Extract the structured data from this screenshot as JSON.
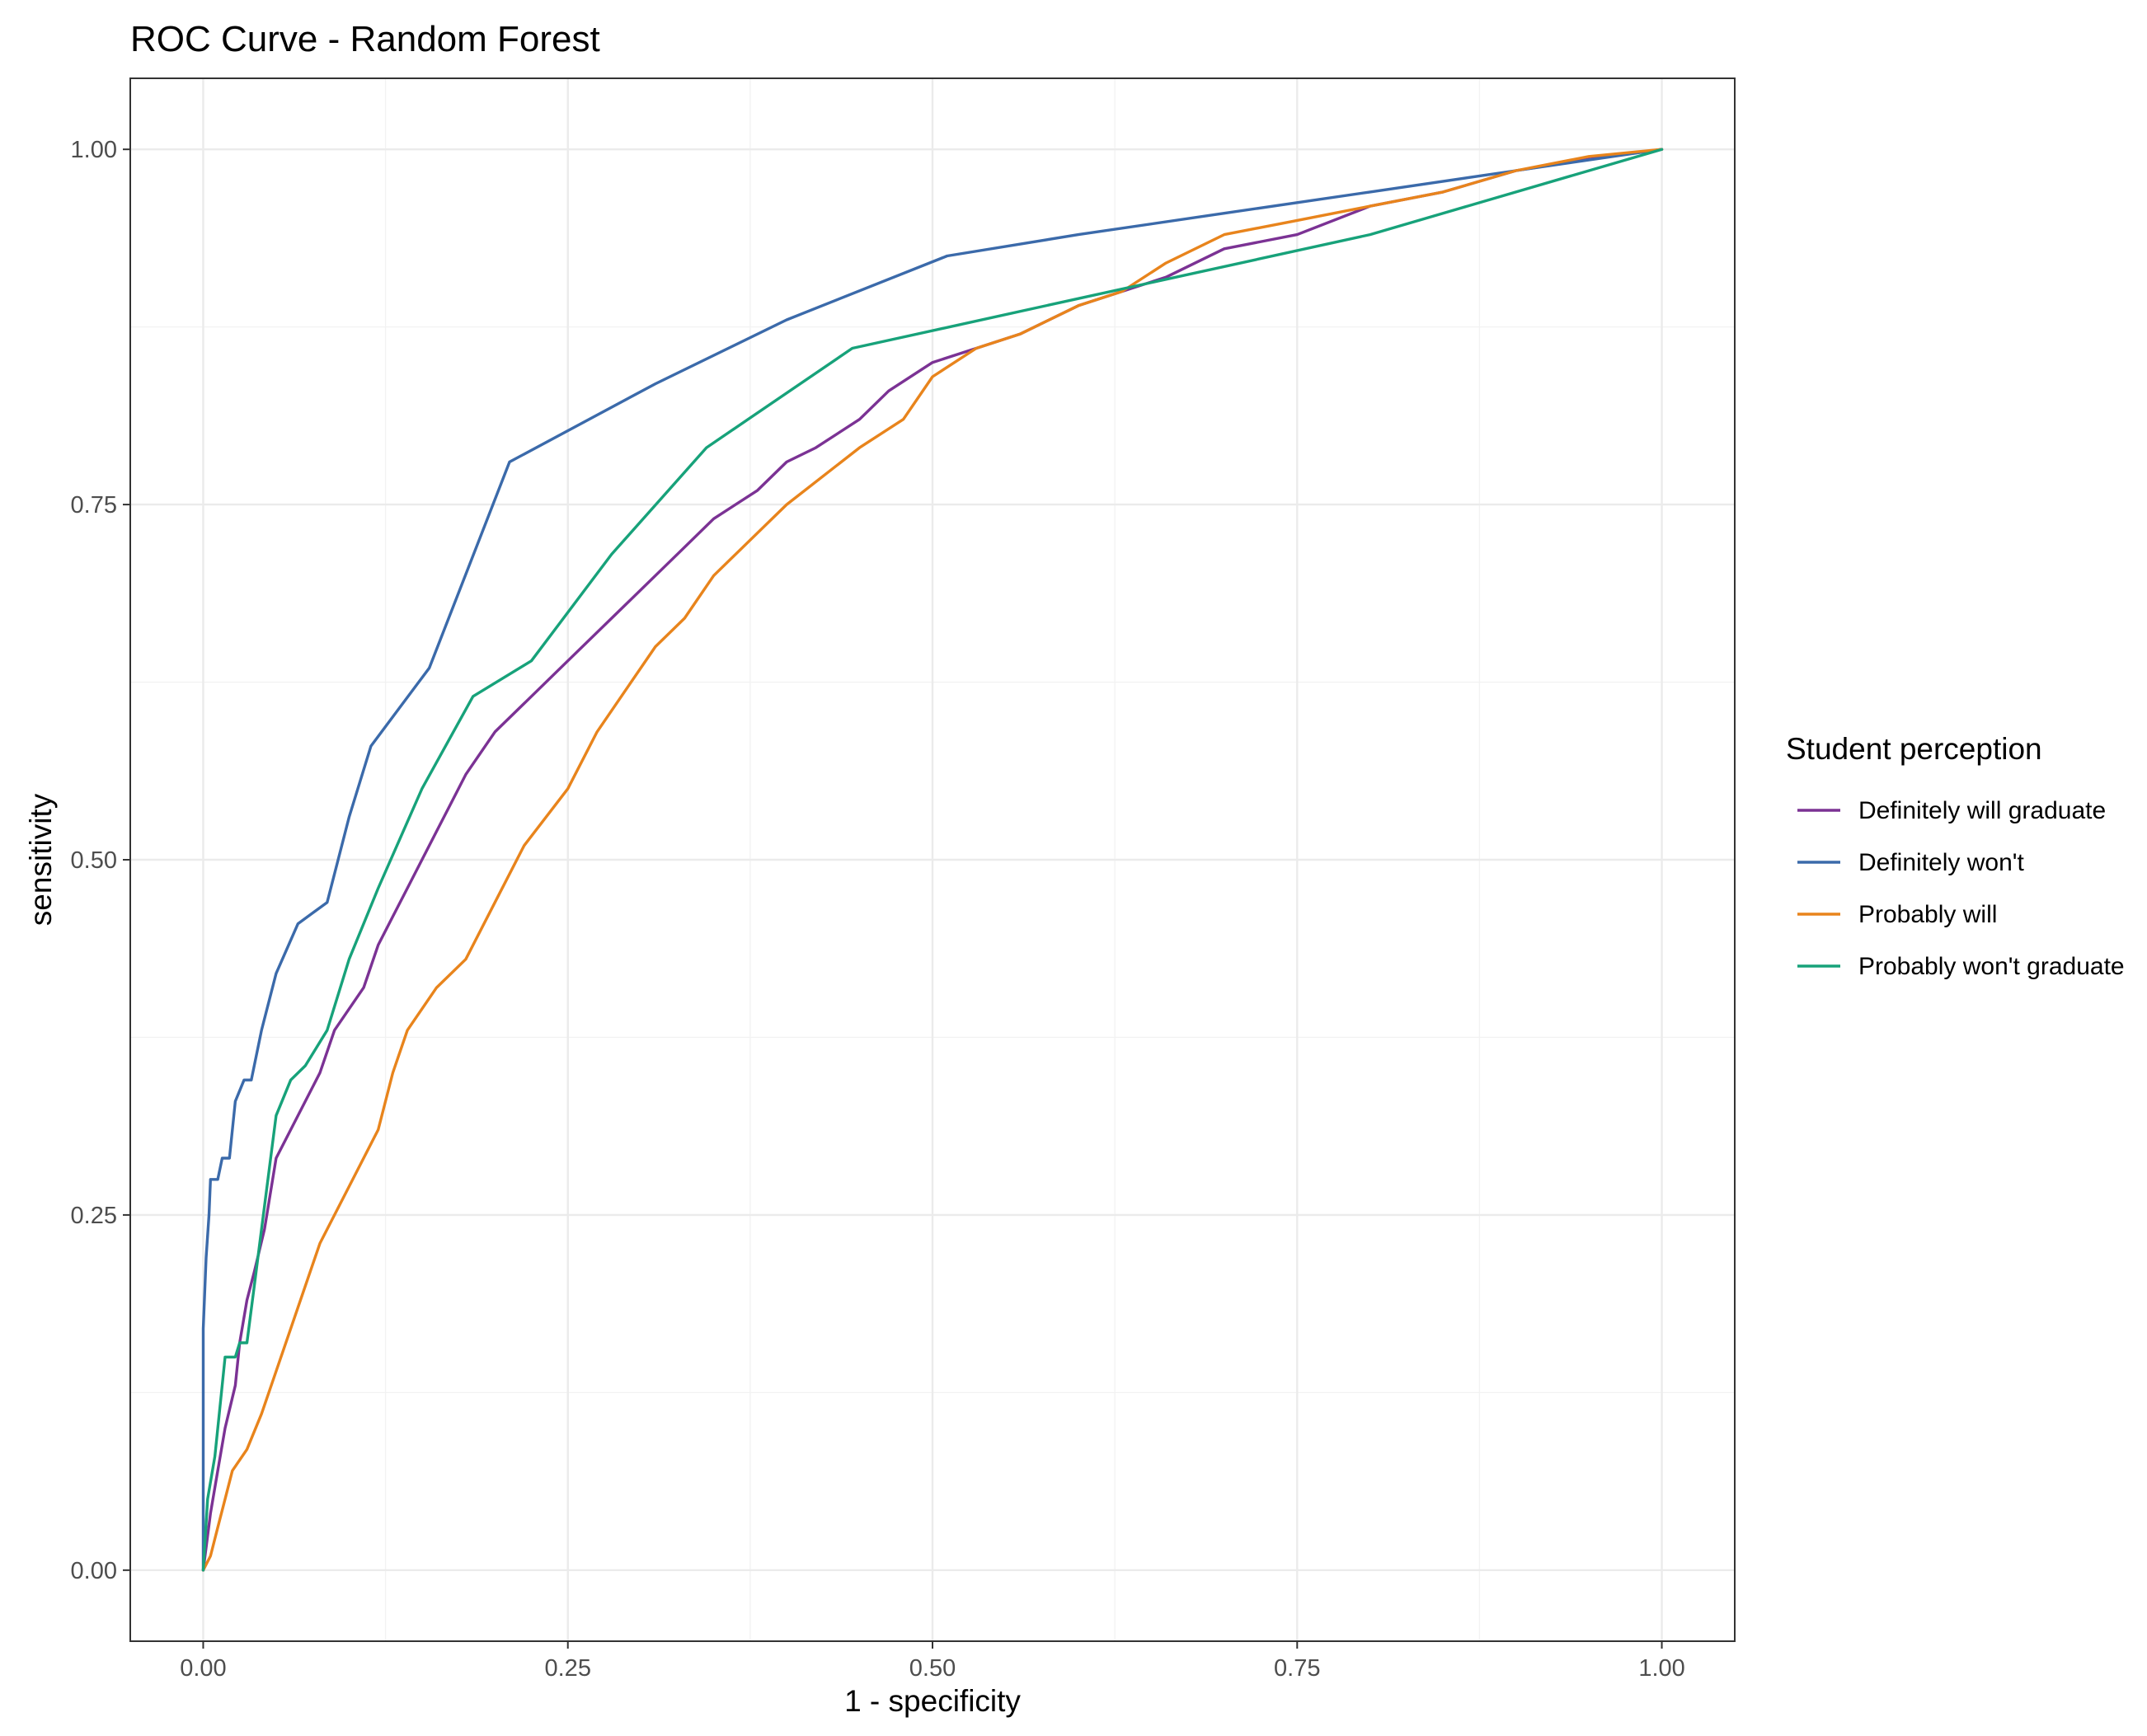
{
  "chart_data": {
    "type": "line",
    "title": "ROC Curve - Random Forest",
    "xlabel": "1 - specificity",
    "ylabel": "sensitivity",
    "xlim": [
      -0.05,
      1.05
    ],
    "ylim": [
      -0.05,
      1.05
    ],
    "x_ticks": [
      "0.00",
      "0.25",
      "0.50",
      "0.75",
      "1.00"
    ],
    "y_ticks": [
      "0.00",
      "0.25",
      "0.50",
      "0.75",
      "1.00"
    ],
    "grid": true,
    "legend_title": "Student perception",
    "legend_position": "right",
    "series": [
      {
        "name": "Definitely will graduate",
        "color": "#7b3294",
        "points": [
          [
            0,
            0
          ],
          [
            0.005,
            0.04
          ],
          [
            0.01,
            0.07
          ],
          [
            0.015,
            0.1
          ],
          [
            0.022,
            0.13
          ],
          [
            0.025,
            0.16
          ],
          [
            0.03,
            0.19
          ],
          [
            0.035,
            0.21
          ],
          [
            0.042,
            0.24
          ],
          [
            0.05,
            0.29
          ],
          [
            0.06,
            0.31
          ],
          [
            0.07,
            0.33
          ],
          [
            0.08,
            0.35
          ],
          [
            0.09,
            0.38
          ],
          [
            0.11,
            0.41
          ],
          [
            0.12,
            0.44
          ],
          [
            0.13,
            0.46
          ],
          [
            0.14,
            0.48
          ],
          [
            0.15,
            0.5
          ],
          [
            0.16,
            0.52
          ],
          [
            0.17,
            0.54
          ],
          [
            0.18,
            0.56
          ],
          [
            0.2,
            0.59
          ],
          [
            0.22,
            0.61
          ],
          [
            0.25,
            0.64
          ],
          [
            0.28,
            0.67
          ],
          [
            0.31,
            0.7
          ],
          [
            0.33,
            0.72
          ],
          [
            0.35,
            0.74
          ],
          [
            0.38,
            0.76
          ],
          [
            0.4,
            0.78
          ],
          [
            0.42,
            0.79
          ],
          [
            0.45,
            0.81
          ],
          [
            0.47,
            0.83
          ],
          [
            0.5,
            0.85
          ],
          [
            0.53,
            0.86
          ],
          [
            0.56,
            0.87
          ],
          [
            0.6,
            0.89
          ],
          [
            0.63,
            0.9
          ],
          [
            0.66,
            0.91
          ],
          [
            0.7,
            0.93
          ],
          [
            0.75,
            0.94
          ],
          [
            0.8,
            0.96
          ],
          [
            0.85,
            0.97
          ],
          [
            0.9,
            0.985
          ],
          [
            0.95,
            0.993
          ],
          [
            1,
            1
          ]
        ]
      },
      {
        "name": "Definitely won't",
        "color": "#3b6aaa",
        "points": [
          [
            0,
            0
          ],
          [
            0,
            0.17
          ],
          [
            0.002,
            0.22
          ],
          [
            0.004,
            0.25
          ],
          [
            0.005,
            0.275
          ],
          [
            0.01,
            0.275
          ],
          [
            0.013,
            0.29
          ],
          [
            0.018,
            0.29
          ],
          [
            0.022,
            0.33
          ],
          [
            0.028,
            0.345
          ],
          [
            0.033,
            0.345
          ],
          [
            0.04,
            0.38
          ],
          [
            0.05,
            0.42
          ],
          [
            0.065,
            0.455
          ],
          [
            0.085,
            0.47
          ],
          [
            0.1,
            0.53
          ],
          [
            0.115,
            0.58
          ],
          [
            0.155,
            0.635
          ],
          [
            0.21,
            0.78
          ],
          [
            0.31,
            0.835
          ],
          [
            0.4,
            0.88
          ],
          [
            0.51,
            0.925
          ],
          [
            0.6,
            0.94
          ],
          [
            0.7,
            0.955
          ],
          [
            0.8,
            0.97
          ],
          [
            0.9,
            0.985
          ],
          [
            1,
            1
          ]
        ]
      },
      {
        "name": "Probably will",
        "color": "#e8841c",
        "points": [
          [
            0,
            0
          ],
          [
            0.005,
            0.01
          ],
          [
            0.01,
            0.03
          ],
          [
            0.015,
            0.05
          ],
          [
            0.02,
            0.07
          ],
          [
            0.03,
            0.085
          ],
          [
            0.04,
            0.11
          ],
          [
            0.05,
            0.14
          ],
          [
            0.06,
            0.17
          ],
          [
            0.07,
            0.2
          ],
          [
            0.08,
            0.23
          ],
          [
            0.09,
            0.25
          ],
          [
            0.1,
            0.27
          ],
          [
            0.12,
            0.31
          ],
          [
            0.13,
            0.35
          ],
          [
            0.14,
            0.38
          ],
          [
            0.16,
            0.41
          ],
          [
            0.18,
            0.43
          ],
          [
            0.2,
            0.47
          ],
          [
            0.22,
            0.51
          ],
          [
            0.25,
            0.55
          ],
          [
            0.27,
            0.59
          ],
          [
            0.29,
            0.62
          ],
          [
            0.31,
            0.65
          ],
          [
            0.33,
            0.67
          ],
          [
            0.35,
            0.7
          ],
          [
            0.37,
            0.72
          ],
          [
            0.4,
            0.75
          ],
          [
            0.45,
            0.79
          ],
          [
            0.48,
            0.81
          ],
          [
            0.5,
            0.84
          ],
          [
            0.53,
            0.86
          ],
          [
            0.56,
            0.87
          ],
          [
            0.6,
            0.89
          ],
          [
            0.63,
            0.9
          ],
          [
            0.66,
            0.92
          ],
          [
            0.7,
            0.94
          ],
          [
            0.75,
            0.95
          ],
          [
            0.8,
            0.96
          ],
          [
            0.85,
            0.97
          ],
          [
            0.9,
            0.985
          ],
          [
            0.95,
            0.995
          ],
          [
            1,
            1
          ]
        ]
      },
      {
        "name": "Probably won't graduate",
        "color": "#17a27a",
        "points": [
          [
            0,
            0
          ],
          [
            0.003,
            0.05
          ],
          [
            0.008,
            0.08
          ],
          [
            0.012,
            0.12
          ],
          [
            0.015,
            0.15
          ],
          [
            0.022,
            0.15
          ],
          [
            0.025,
            0.16
          ],
          [
            0.03,
            0.16
          ],
          [
            0.035,
            0.2
          ],
          [
            0.04,
            0.24
          ],
          [
            0.05,
            0.32
          ],
          [
            0.06,
            0.345
          ],
          [
            0.07,
            0.355
          ],
          [
            0.085,
            0.38
          ],
          [
            0.1,
            0.43
          ],
          [
            0.12,
            0.48
          ],
          [
            0.15,
            0.55
          ],
          [
            0.185,
            0.615
          ],
          [
            0.225,
            0.64
          ],
          [
            0.28,
            0.715
          ],
          [
            0.345,
            0.79
          ],
          [
            0.445,
            0.86
          ],
          [
            0.6,
            0.895
          ],
          [
            0.8,
            0.94
          ],
          [
            1,
            1
          ]
        ]
      }
    ]
  }
}
